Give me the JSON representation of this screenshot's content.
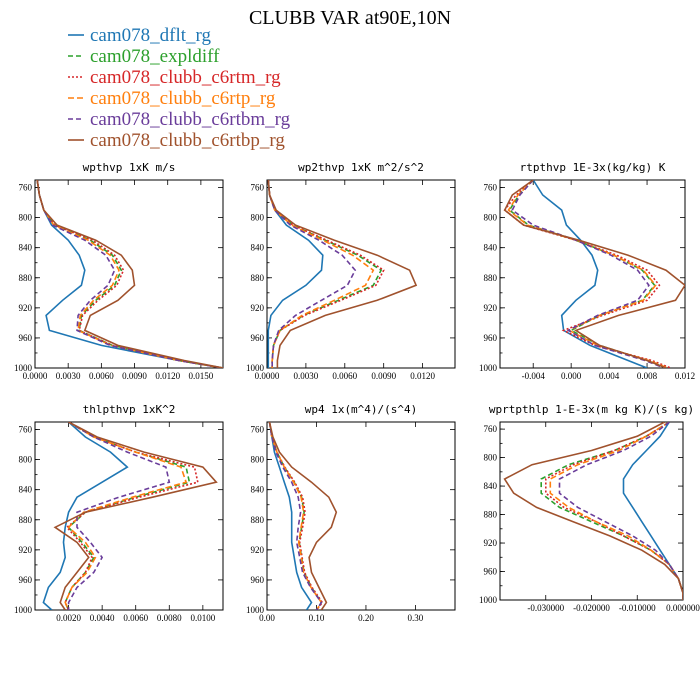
{
  "figure": {
    "title": "CLUBB VAR at90E,10N"
  },
  "legend": [
    {
      "label": "cam078_dflt_rg",
      "color": "#1f77b4",
      "dash": ""
    },
    {
      "label": "cam078_expldiff",
      "color": "#2ca02c",
      "dash": "5,3"
    },
    {
      "label": "cam078_clubb_c6rtm_rg",
      "color": "#d62728",
      "dash": "2,2"
    },
    {
      "label": "cam078_clubb_c6rtp_rg",
      "color": "#ff7f0e",
      "dash": "6,3"
    },
    {
      "label": "cam078_clubb_c6rtbm_rg",
      "color": "#6a3d9a",
      "dash": "5,3"
    },
    {
      "label": "cam078_clubb_c6rtbp_rg",
      "color": "#a0522d",
      "dash": ""
    }
  ],
  "chart_data": [
    {
      "type": "line",
      "title": "wpthvp  1xK m/s",
      "xlim": [
        0,
        0.017
      ],
      "ylim": [
        1000,
        750
      ],
      "xticks": [
        0.0,
        0.003,
        0.006,
        0.009,
        0.012,
        0.015
      ],
      "xtick_labels": [
        "0.0000",
        "0.0030",
        "0.0060",
        "0.0090",
        "0.0120",
        "0.0150"
      ],
      "yticks": [
        760,
        800,
        840,
        880,
        920,
        960,
        1000
      ],
      "y": [
        750,
        770,
        790,
        810,
        830,
        850,
        870,
        890,
        910,
        930,
        950,
        970,
        990,
        1000
      ],
      "series": [
        {
          "values": [
            0.0002,
            0.0004,
            0.0008,
            0.0015,
            0.003,
            0.004,
            0.0045,
            0.0042,
            0.0025,
            0.001,
            0.0013,
            0.006,
            0.013,
            0.017
          ]
        },
        {
          "values": [
            0.0002,
            0.0004,
            0.0008,
            0.0018,
            0.005,
            0.007,
            0.0078,
            0.0072,
            0.0055,
            0.0042,
            0.004,
            0.007,
            0.013,
            0.017
          ]
        },
        {
          "values": [
            0.0002,
            0.0004,
            0.0008,
            0.0018,
            0.0052,
            0.0072,
            0.008,
            0.0074,
            0.0057,
            0.0043,
            0.004,
            0.007,
            0.013,
            0.017
          ]
        },
        {
          "values": [
            0.0002,
            0.0004,
            0.0008,
            0.0017,
            0.0048,
            0.0068,
            0.0076,
            0.007,
            0.0053,
            0.0041,
            0.0039,
            0.0069,
            0.013,
            0.017
          ]
        },
        {
          "values": [
            0.0002,
            0.0004,
            0.0008,
            0.0016,
            0.0045,
            0.0064,
            0.0072,
            0.0066,
            0.005,
            0.0039,
            0.0038,
            0.0068,
            0.013,
            0.017
          ]
        },
        {
          "values": [
            0.0002,
            0.0004,
            0.0008,
            0.002,
            0.0055,
            0.0078,
            0.0088,
            0.009,
            0.0075,
            0.005,
            0.0045,
            0.0075,
            0.0135,
            0.017
          ]
        }
      ]
    },
    {
      "type": "line",
      "title": "wp2thvp  1xK m^2/s^2",
      "xlim": [
        0,
        0.0145
      ],
      "ylim": [
        1000,
        750
      ],
      "xticks": [
        0.0,
        0.003,
        0.006,
        0.009,
        0.012
      ],
      "xtick_labels": [
        "0.0000",
        "0.0030",
        "0.0060",
        "0.0090",
        "0.0120"
      ],
      "yticks": [
        760,
        800,
        840,
        880,
        920,
        960,
        1000
      ],
      "y": [
        750,
        770,
        790,
        810,
        830,
        850,
        870,
        890,
        910,
        930,
        950,
        970,
        990,
        1000
      ],
      "series": [
        {
          "values": [
            0.0001,
            0.0002,
            0.0006,
            0.0015,
            0.0032,
            0.0043,
            0.0042,
            0.003,
            0.0012,
            0.0003,
            0.0001,
            0.0001,
            0.0001,
            0.0001
          ]
        },
        {
          "values": [
            0.0001,
            0.0002,
            0.0006,
            0.002,
            0.0045,
            0.007,
            0.0088,
            0.0082,
            0.0055,
            0.0028,
            0.001,
            0.0005,
            0.0004,
            0.0004
          ]
        },
        {
          "values": [
            0.0001,
            0.0002,
            0.0006,
            0.002,
            0.0046,
            0.0072,
            0.009,
            0.0084,
            0.0057,
            0.0029,
            0.001,
            0.0005,
            0.0004,
            0.0004
          ]
        },
        {
          "values": [
            0.0001,
            0.0002,
            0.0006,
            0.0019,
            0.0043,
            0.0066,
            0.0082,
            0.0076,
            0.0052,
            0.0027,
            0.001,
            0.0005,
            0.0004,
            0.0004
          ]
        },
        {
          "values": [
            0.0001,
            0.0002,
            0.0006,
            0.0018,
            0.004,
            0.0058,
            0.0068,
            0.0062,
            0.0042,
            0.0022,
            0.0009,
            0.0005,
            0.0004,
            0.0004
          ]
        },
        {
          "values": [
            0.0001,
            0.0002,
            0.0007,
            0.0022,
            0.0052,
            0.0085,
            0.011,
            0.0115,
            0.0085,
            0.0045,
            0.0018,
            0.001,
            0.0008,
            0.0008
          ]
        }
      ]
    },
    {
      "type": "line",
      "title": "rtpthvp  1E-3x(kg/kg) K",
      "xlim": [
        -0.0075,
        0.012
      ],
      "ylim": [
        1000,
        750
      ],
      "xticks": [
        -0.004,
        0.0,
        0.004,
        0.008,
        0.012
      ],
      "xtick_labels": [
        "-0.004",
        "0.000",
        "0.004",
        "0.008",
        "0.012"
      ],
      "yticks": [
        760,
        800,
        840,
        880,
        920,
        960,
        1000
      ],
      "y": [
        750,
        770,
        790,
        810,
        830,
        850,
        870,
        890,
        910,
        930,
        950,
        970,
        990,
        1000
      ],
      "series": [
        {
          "values": [
            -0.004,
            -0.003,
            -0.001,
            -0.0005,
            0.001,
            0.0022,
            0.0028,
            0.0025,
            0.0005,
            -0.001,
            -0.0008,
            0.002,
            0.006,
            0.008
          ]
        },
        {
          "values": [
            -0.004,
            -0.0055,
            -0.0065,
            -0.0045,
            0.0005,
            0.0045,
            0.0075,
            0.0088,
            0.0075,
            0.003,
            0.0,
            0.003,
            0.008,
            0.01
          ]
        },
        {
          "values": [
            -0.004,
            -0.0058,
            -0.007,
            -0.005,
            0.0005,
            0.0048,
            0.008,
            0.0093,
            0.008,
            0.0033,
            -0.0008,
            0.0025,
            0.0085,
            0.0105
          ]
        },
        {
          "values": [
            -0.004,
            -0.0056,
            -0.0066,
            -0.0046,
            0.0005,
            0.0045,
            0.0076,
            0.0089,
            0.0076,
            0.003,
            -0.0002,
            0.0028,
            0.0082,
            0.0102
          ]
        },
        {
          "values": [
            -0.004,
            -0.0054,
            -0.0062,
            -0.004,
            0.0005,
            0.0042,
            0.007,
            0.0082,
            0.007,
            0.0028,
            -0.0003,
            0.0025,
            0.0078,
            0.0098
          ]
        },
        {
          "values": [
            -0.004,
            -0.0062,
            -0.007,
            -0.005,
            0.0008,
            0.006,
            0.01,
            0.012,
            0.011,
            0.005,
            0.0005,
            0.003,
            0.008,
            0.01
          ]
        }
      ]
    },
    {
      "type": "line",
      "title": "thlpthvp  1xK^2",
      "xlim": [
        0,
        0.0112
      ],
      "ylim": [
        1000,
        750
      ],
      "xticks": [
        0.002,
        0.004,
        0.006,
        0.008,
        0.01
      ],
      "xtick_labels": [
        "0.0020",
        "0.0040",
        "0.0060",
        "0.0080",
        "0.0100"
      ],
      "yticks": [
        760,
        800,
        840,
        880,
        920,
        960,
        1000
      ],
      "y": [
        750,
        770,
        790,
        810,
        830,
        850,
        870,
        890,
        910,
        930,
        950,
        970,
        990,
        1000
      ],
      "series": [
        {
          "values": [
            0.002,
            0.003,
            0.0045,
            0.0055,
            0.004,
            0.0025,
            0.002,
            0.0018,
            0.0017,
            0.0018,
            0.0015,
            0.0008,
            0.0005,
            0.001
          ]
        },
        {
          "values": [
            0.002,
            0.0035,
            0.006,
            0.009,
            0.0092,
            0.006,
            0.003,
            0.002,
            0.0028,
            0.0035,
            0.003,
            0.0022,
            0.0018,
            0.002
          ]
        },
        {
          "values": [
            0.002,
            0.0035,
            0.006,
            0.0095,
            0.0097,
            0.0062,
            0.003,
            0.0019,
            0.0027,
            0.0034,
            0.003,
            0.0022,
            0.0018,
            0.002
          ]
        },
        {
          "values": [
            0.002,
            0.0035,
            0.006,
            0.0087,
            0.009,
            0.0058,
            0.0029,
            0.002,
            0.003,
            0.0036,
            0.0031,
            0.0022,
            0.0018,
            0.002
          ]
        },
        {
          "values": [
            0.002,
            0.0035,
            0.0055,
            0.0078,
            0.008,
            0.005,
            0.0025,
            0.0025,
            0.0033,
            0.004,
            0.0035,
            0.0025,
            0.002,
            0.002
          ]
        },
        {
          "values": [
            0.002,
            0.0037,
            0.0065,
            0.01,
            0.0108,
            0.007,
            0.003,
            0.0012,
            0.0025,
            0.0032,
            0.0025,
            0.0018,
            0.0015,
            0.0018
          ]
        }
      ]
    },
    {
      "type": "line",
      "title": "wp4  1x(m^4)/(s^4)",
      "xlim": [
        0,
        0.38
      ],
      "ylim": [
        1000,
        750
      ],
      "xticks": [
        0.0,
        0.1,
        0.2,
        0.3
      ],
      "xtick_labels": [
        "0.00",
        "0.10",
        "0.20",
        "0.30"
      ],
      "yticks": [
        760,
        800,
        840,
        880,
        920,
        960,
        1000
      ],
      "y": [
        750,
        770,
        790,
        810,
        830,
        850,
        870,
        890,
        910,
        930,
        950,
        970,
        990,
        1000
      ],
      "series": [
        {
          "values": [
            0.005,
            0.01,
            0.015,
            0.025,
            0.035,
            0.045,
            0.05,
            0.05,
            0.05,
            0.055,
            0.06,
            0.07,
            0.09,
            0.08
          ]
        },
        {
          "values": [
            0.005,
            0.01,
            0.02,
            0.035,
            0.055,
            0.07,
            0.075,
            0.07,
            0.065,
            0.07,
            0.075,
            0.09,
            0.11,
            0.1
          ]
        },
        {
          "values": [
            0.005,
            0.01,
            0.02,
            0.036,
            0.056,
            0.072,
            0.077,
            0.072,
            0.066,
            0.071,
            0.076,
            0.091,
            0.112,
            0.1
          ]
        },
        {
          "values": [
            0.005,
            0.01,
            0.02,
            0.035,
            0.054,
            0.069,
            0.074,
            0.069,
            0.064,
            0.069,
            0.074,
            0.089,
            0.11,
            0.1
          ]
        },
        {
          "values": [
            0.005,
            0.01,
            0.018,
            0.032,
            0.05,
            0.063,
            0.068,
            0.063,
            0.06,
            0.066,
            0.072,
            0.088,
            0.11,
            0.1
          ]
        },
        {
          "values": [
            0.005,
            0.012,
            0.025,
            0.05,
            0.09,
            0.125,
            0.14,
            0.13,
            0.1,
            0.085,
            0.09,
            0.105,
            0.12,
            0.11
          ]
        }
      ]
    },
    {
      "type": "line",
      "title": "wprtpthlp  1-E-3x(m kg K)/(s kg)",
      "xlim": [
        -0.04,
        0.0
      ],
      "ylim": [
        1000,
        750
      ],
      "xticks": [
        -0.03,
        -0.02,
        -0.01,
        0.0
      ],
      "xtick_labels": [
        "-0.030000",
        "-0.020000",
        "-0.010000",
        "0.000000"
      ],
      "yticks": [
        760,
        800,
        840,
        880,
        920,
        960,
        1000
      ],
      "y": [
        750,
        770,
        790,
        810,
        830,
        850,
        870,
        890,
        910,
        930,
        950,
        970,
        990,
        1000
      ],
      "series": [
        {
          "values": [
            -0.003,
            -0.005,
            -0.008,
            -0.011,
            -0.013,
            -0.013,
            -0.011,
            -0.009,
            -0.007,
            -0.005,
            -0.003,
            -0.001,
            0.0,
            0.0
          ]
        },
        {
          "values": [
            -0.003,
            -0.008,
            -0.015,
            -0.025,
            -0.031,
            -0.031,
            -0.027,
            -0.02,
            -0.013,
            -0.007,
            -0.003,
            -0.001,
            0.0,
            0.0
          ]
        },
        {
          "values": [
            -0.003,
            -0.008,
            -0.015,
            -0.024,
            -0.03,
            -0.03,
            -0.026,
            -0.019,
            -0.013,
            -0.007,
            -0.003,
            -0.001,
            0.0,
            0.0
          ]
        },
        {
          "values": [
            -0.003,
            -0.008,
            -0.014,
            -0.023,
            -0.029,
            -0.029,
            -0.025,
            -0.019,
            -0.012,
            -0.007,
            -0.003,
            -0.001,
            0.0,
            0.0
          ]
        },
        {
          "values": [
            -0.003,
            -0.007,
            -0.013,
            -0.021,
            -0.027,
            -0.027,
            -0.023,
            -0.017,
            -0.011,
            -0.006,
            -0.003,
            -0.001,
            0.0,
            0.0
          ]
        },
        {
          "values": [
            -0.004,
            -0.01,
            -0.02,
            -0.033,
            -0.039,
            -0.037,
            -0.032,
            -0.024,
            -0.016,
            -0.009,
            -0.004,
            -0.001,
            0.0,
            0.0
          ]
        }
      ]
    }
  ]
}
